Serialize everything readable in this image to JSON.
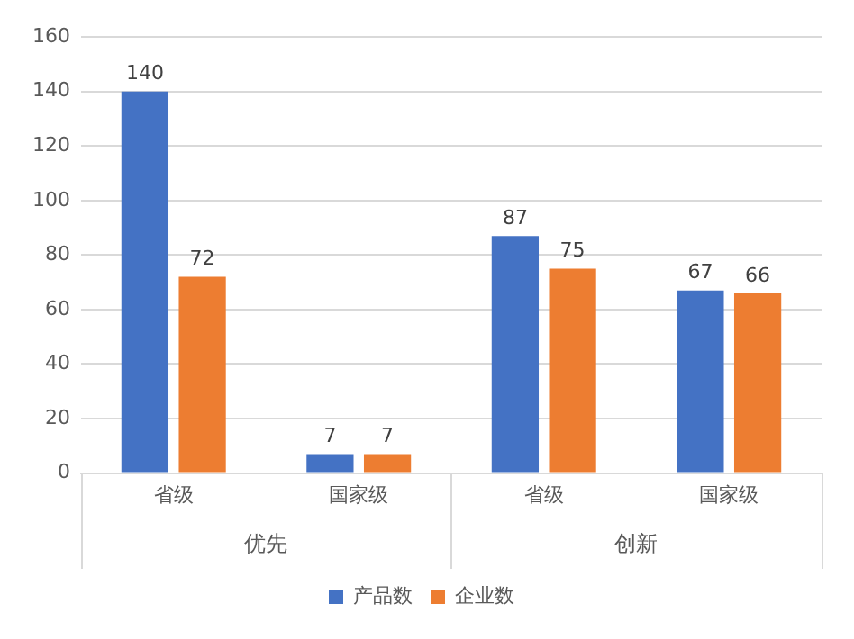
{
  "chart_data": {
    "type": "bar",
    "categories": [
      "省级",
      "国家级",
      "省级",
      "国家级"
    ],
    "series": [
      {
        "name": "产品数",
        "color": "#4472c4",
        "values": [
          140,
          7,
          87,
          67
        ]
      },
      {
        "name": "企业数",
        "color": "#ed7d31",
        "values": [
          72,
          7,
          75,
          66
        ]
      }
    ],
    "annotations": [
      "优先",
      "创新"
    ],
    "ylim": [
      0,
      160
    ],
    "yticks": [
      0,
      20,
      40,
      60,
      80,
      100,
      120,
      140,
      160
    ],
    "grid": "y",
    "legend": "bottom",
    "data_labels": true
  }
}
